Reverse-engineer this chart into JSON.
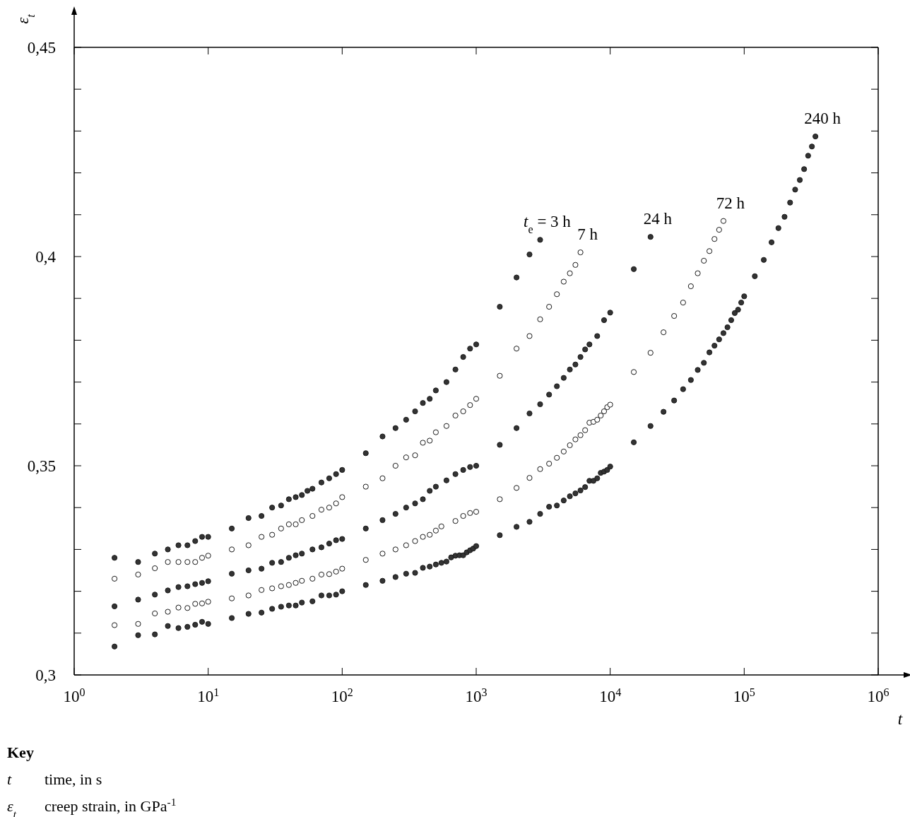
{
  "chart_data": {
    "type": "scatter",
    "log": "x",
    "marker": "circle",
    "grid": false,
    "xlabel": "t",
    "ylabel": "ε$_{t}$",
    "xlim": [
      1,
      1000000
    ],
    "ylim": [
      0.3,
      0.45
    ],
    "xticks": [
      {
        "value": 1,
        "label": "10$^{0}$"
      },
      {
        "value": 10,
        "label": "10$^{1}$"
      },
      {
        "value": 100,
        "label": "10$^{2}$"
      },
      {
        "value": 1000,
        "label": "10$^{3}$"
      },
      {
        "value": 10000,
        "label": "10$^{4}$"
      },
      {
        "value": 100000,
        "label": "10$^{5}$"
      },
      {
        "value": 1000000,
        "label": "10$^{6}$"
      }
    ],
    "yticks": [
      {
        "value": 0.3,
        "label": "0,3"
      },
      {
        "value": 0.31,
        "label": null
      },
      {
        "value": 0.32,
        "label": null
      },
      {
        "value": 0.33,
        "label": null
      },
      {
        "value": 0.34,
        "label": null
      },
      {
        "value": 0.35,
        "label": "0,35"
      },
      {
        "value": 0.36,
        "label": null
      },
      {
        "value": 0.37,
        "label": null
      },
      {
        "value": 0.38,
        "label": null
      },
      {
        "value": 0.39,
        "label": null
      },
      {
        "value": 0.4,
        "label": "0,4"
      },
      {
        "value": 0.41,
        "label": null
      },
      {
        "value": 0.42,
        "label": null
      },
      {
        "value": 0.43,
        "label": null
      },
      {
        "value": 0.44,
        "label": null
      },
      {
        "value": 0.45,
        "label": "0,45"
      }
    ],
    "annotations": [
      "Key",
      "t\ttime, in s",
      "ε$_{t}$\tcreep strain, in GPa$^{-1}$"
    ],
    "series": [
      {
        "name": "t$_{e}$ = 3 h",
        "color": "#333333",
        "x": [
          2,
          3,
          4,
          5,
          6,
          7,
          8,
          9,
          10,
          15,
          20,
          25,
          30,
          35,
          40,
          45,
          50,
          55,
          60,
          70,
          80,
          90,
          100,
          150,
          200,
          250,
          300,
          350,
          400,
          450,
          500,
          600,
          700,
          800,
          900,
          1000,
          1500,
          2000,
          2500,
          3000
        ],
        "values": [
          0.328,
          0.327,
          0.329,
          0.33,
          0.331,
          0.331,
          0.332,
          0.333,
          0.333,
          0.335,
          0.3375,
          0.338,
          0.34,
          0.3405,
          0.342,
          0.3425,
          0.343,
          0.344,
          0.3445,
          0.346,
          0.347,
          0.348,
          0.349,
          0.353,
          0.357,
          0.359,
          0.361,
          0.363,
          0.365,
          0.366,
          0.368,
          0.37,
          0.373,
          0.376,
          0.378,
          0.379,
          0.388,
          0.395,
          0.4005,
          0.404
        ]
      },
      {
        "name": "7 h",
        "color": "#ffffff",
        "x": [
          2,
          3,
          4,
          5,
          6,
          7,
          8,
          9,
          10,
          15,
          20,
          25,
          30,
          35,
          40,
          45,
          50,
          60,
          70,
          80,
          90,
          100,
          150,
          200,
          250,
          300,
          350,
          400,
          450,
          500,
          600,
          700,
          800,
          900,
          1000,
          1500,
          2000,
          2500,
          3000,
          3500,
          4000,
          4500,
          5000,
          5500,
          6000
        ],
        "values": [
          0.323,
          0.324,
          0.3255,
          0.327,
          0.327,
          0.327,
          0.327,
          0.328,
          0.3285,
          0.33,
          0.331,
          0.333,
          0.3335,
          0.335,
          0.336,
          0.336,
          0.337,
          0.338,
          0.3395,
          0.34,
          0.341,
          0.3425,
          0.345,
          0.347,
          0.35,
          0.352,
          0.3525,
          0.3555,
          0.356,
          0.358,
          0.3595,
          0.362,
          0.363,
          0.3645,
          0.366,
          0.3715,
          0.378,
          0.381,
          0.385,
          0.388,
          0.391,
          0.394,
          0.396,
          0.398,
          0.401
        ]
      },
      {
        "name": "24 h",
        "color": "#333333",
        "x": [
          2,
          3,
          4,
          5,
          6,
          7,
          8,
          9,
          10,
          15,
          20,
          25,
          30,
          35,
          40,
          45,
          50,
          60,
          70,
          80,
          90,
          100,
          150,
          200,
          250,
          300,
          350,
          400,
          450,
          500,
          600,
          700,
          800,
          900,
          1000,
          1500,
          2000,
          2500,
          3000,
          3500,
          4000,
          4500,
          5000,
          5500,
          6000,
          6500,
          7000,
          8000,
          9000,
          10000,
          15000,
          20000
        ],
        "values": [
          0.3164,
          0.318,
          0.3192,
          0.3202,
          0.321,
          0.3212,
          0.3217,
          0.322,
          0.3224,
          0.3242,
          0.325,
          0.3254,
          0.3268,
          0.327,
          0.328,
          0.3286,
          0.329,
          0.33,
          0.3305,
          0.3314,
          0.3322,
          0.3325,
          0.335,
          0.337,
          0.3385,
          0.34,
          0.341,
          0.342,
          0.344,
          0.345,
          0.3465,
          0.348,
          0.349,
          0.3497,
          0.35,
          0.355,
          0.359,
          0.3625,
          0.3647,
          0.367,
          0.369,
          0.371,
          0.373,
          0.3742,
          0.376,
          0.3778,
          0.379,
          0.381,
          0.3848,
          0.3866,
          0.397,
          0.4047
        ]
      },
      {
        "name": "72 h",
        "color": "#ffffff",
        "x": [
          2,
          3,
          4,
          5,
          6,
          7,
          8,
          9,
          10,
          15,
          20,
          25,
          30,
          35,
          40,
          45,
          50,
          60,
          70,
          80,
          90,
          100,
          150,
          200,
          250,
          300,
          350,
          400,
          450,
          500,
          550,
          700,
          800,
          900,
          1000,
          1500,
          2000,
          2500,
          3000,
          3500,
          4000,
          4500,
          5000,
          5500,
          6000,
          6500,
          7000,
          7500,
          8000,
          8500,
          9000,
          9500,
          10000,
          15000,
          20000,
          25000,
          30000,
          35000,
          40000,
          45000,
          50000,
          55000,
          60000,
          65000,
          70000
        ],
        "values": [
          0.3119,
          0.3122,
          0.3147,
          0.3151,
          0.3161,
          0.316,
          0.317,
          0.3171,
          0.3175,
          0.3183,
          0.319,
          0.3203,
          0.3207,
          0.3212,
          0.3215,
          0.322,
          0.3225,
          0.323,
          0.324,
          0.3241,
          0.3247,
          0.3254,
          0.3275,
          0.329,
          0.33,
          0.331,
          0.332,
          0.333,
          0.3335,
          0.3345,
          0.3355,
          0.3368,
          0.338,
          0.3387,
          0.339,
          0.342,
          0.3447,
          0.3471,
          0.3492,
          0.3505,
          0.3519,
          0.3534,
          0.3549,
          0.3563,
          0.3573,
          0.3585,
          0.3603,
          0.3605,
          0.361,
          0.362,
          0.363,
          0.364,
          0.3646,
          0.3724,
          0.377,
          0.3819,
          0.3858,
          0.389,
          0.3929,
          0.396,
          0.399,
          0.4013,
          0.4042,
          0.4064,
          0.4085
        ]
      },
      {
        "name": "240 h",
        "color": "#333333",
        "x": [
          2,
          3,
          4,
          5,
          6,
          7,
          8,
          9,
          10,
          15,
          20,
          25,
          30,
          35,
          40,
          45,
          50,
          60,
          70,
          80,
          90,
          100,
          150,
          200,
          250,
          300,
          350,
          400,
          450,
          500,
          550,
          600,
          650,
          700,
          750,
          800,
          850,
          900,
          950,
          1000,
          1500,
          2000,
          2500,
          3000,
          3500,
          4000,
          4500,
          5000,
          5500,
          6000,
          6500,
          7000,
          7500,
          8000,
          8500,
          9000,
          9500,
          10000,
          15000,
          20000,
          25000,
          30000,
          35000,
          40000,
          45000,
          50000,
          55000,
          60000,
          65000,
          70000,
          75000,
          80000,
          85000,
          90000,
          95000,
          100000,
          120000,
          140000,
          160000,
          180000,
          200000,
          220000,
          240000,
          260000,
          280000,
          300000,
          320000,
          340000
        ],
        "values": [
          0.3068,
          0.3095,
          0.3097,
          0.3117,
          0.3112,
          0.3115,
          0.312,
          0.3127,
          0.3122,
          0.3136,
          0.3146,
          0.3149,
          0.3158,
          0.3163,
          0.3166,
          0.3166,
          0.3173,
          0.3176,
          0.319,
          0.319,
          0.3192,
          0.32,
          0.3215,
          0.3225,
          0.3234,
          0.3242,
          0.3244,
          0.3256,
          0.3259,
          0.3264,
          0.3268,
          0.3271,
          0.3281,
          0.3285,
          0.3286,
          0.3286,
          0.3293,
          0.3298,
          0.3302,
          0.3308,
          0.3334,
          0.3354,
          0.3366,
          0.3385,
          0.3402,
          0.3405,
          0.3417,
          0.3427,
          0.3434,
          0.3441,
          0.3449,
          0.3464,
          0.3464,
          0.347,
          0.3483,
          0.3486,
          0.349,
          0.3498,
          0.3556,
          0.3595,
          0.3629,
          0.3656,
          0.3683,
          0.3705,
          0.3729,
          0.3746,
          0.3771,
          0.3787,
          0.3802,
          0.3817,
          0.3831,
          0.3848,
          0.3865,
          0.3873,
          0.389,
          0.3905,
          0.3953,
          0.3992,
          0.4034,
          0.4068,
          0.4095,
          0.4129,
          0.416,
          0.4183,
          0.4209,
          0.4241,
          0.4263,
          0.4287
        ]
      }
    ]
  }
}
